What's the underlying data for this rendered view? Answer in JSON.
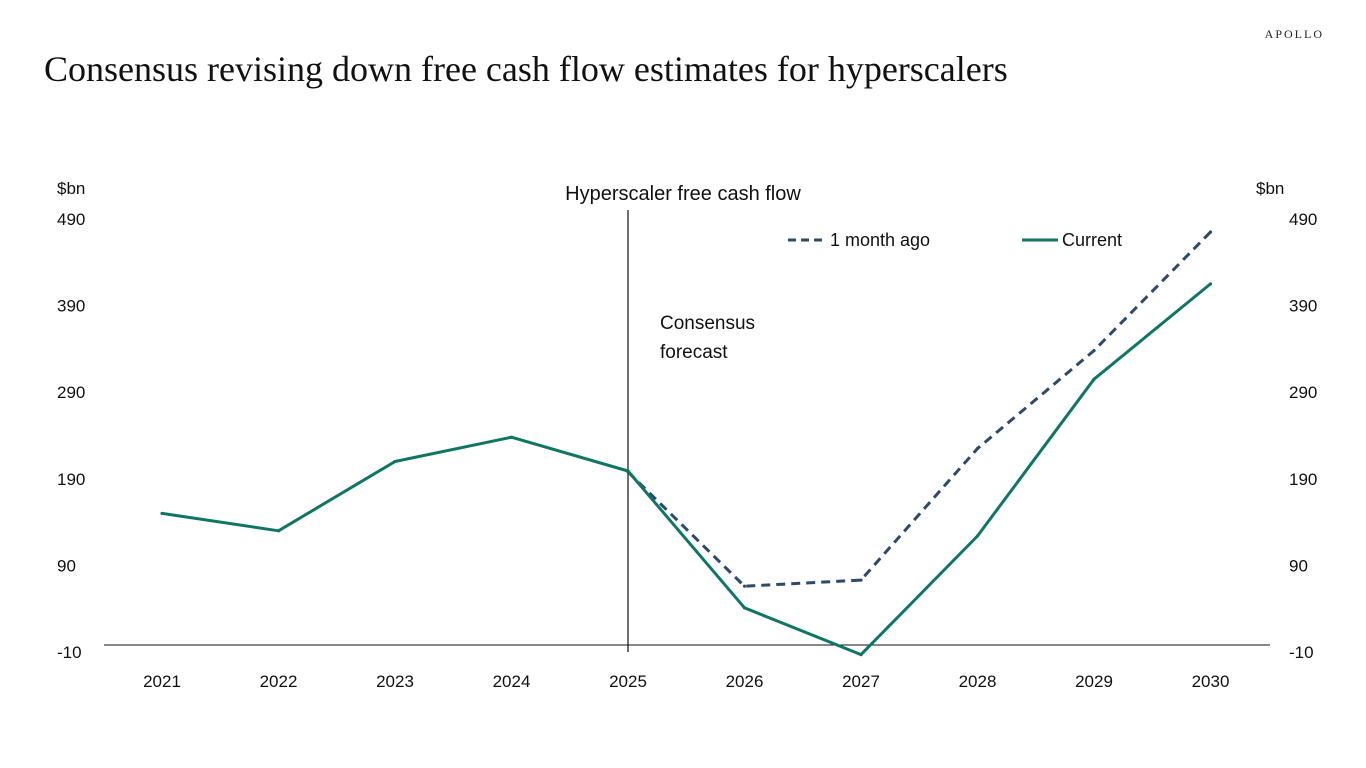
{
  "brand": "APOLLO",
  "page_title": "Consensus revising down free cash flow estimates for hyperscalers",
  "chart_data": {
    "type": "line",
    "title": "Hyperscaler free cash flow",
    "ylabel_left": "$bn",
    "ylabel_right": "$bn",
    "categories": [
      "2021",
      "2022",
      "2023",
      "2024",
      "2025",
      "2026",
      "2027",
      "2028",
      "2029",
      "2030"
    ],
    "yticks": [
      -10,
      90,
      190,
      290,
      390,
      490
    ],
    "ylim": [
      -10,
      490
    ],
    "series": [
      {
        "name": "1 month ago",
        "style": "dashed",
        "color": "#2e4a6b",
        "values": [
          null,
          null,
          null,
          null,
          198,
          66,
          73,
          225,
          338,
          475
        ]
      },
      {
        "name": "Current",
        "style": "solid",
        "color": "#0f7564",
        "values": [
          150,
          130,
          210,
          238,
          199,
          41,
          -13,
          124,
          305,
          415
        ]
      }
    ],
    "annotation": {
      "lines": [
        "Consensus",
        "forecast"
      ],
      "at_category": "2025"
    },
    "legend_position": "top-right",
    "grid": false
  }
}
